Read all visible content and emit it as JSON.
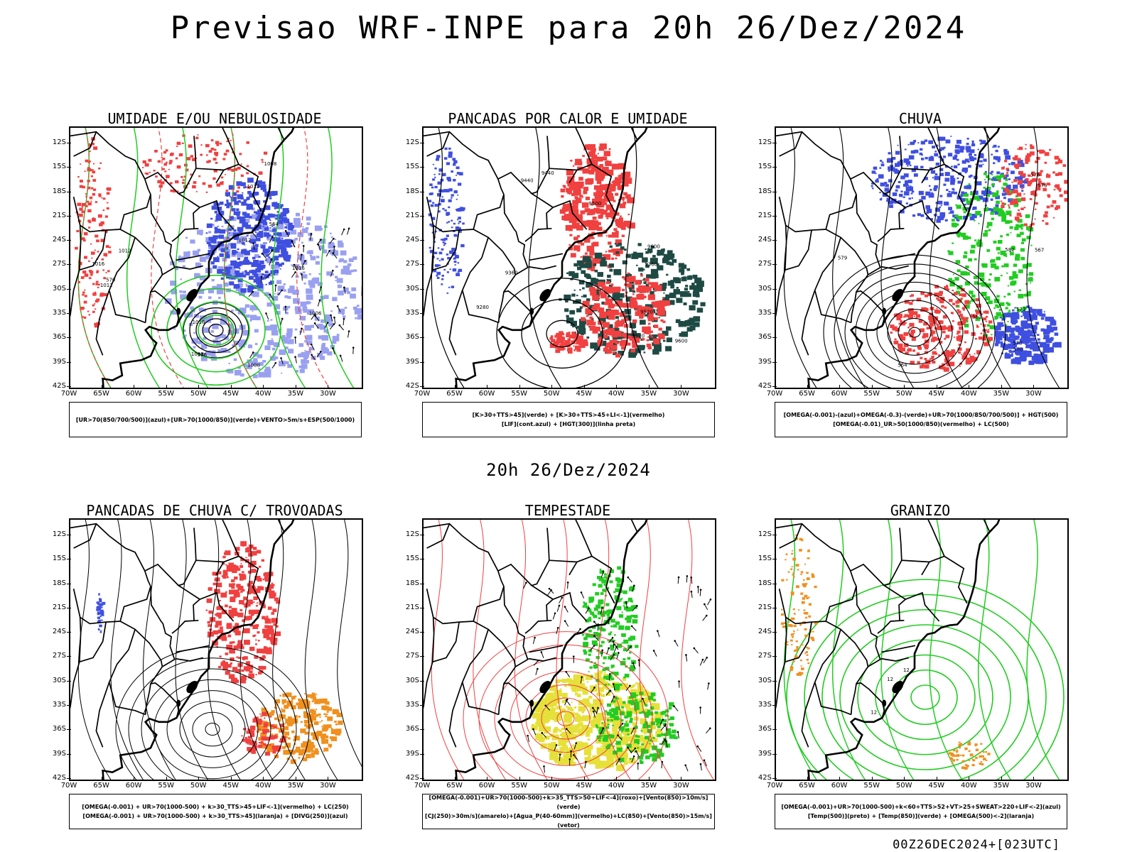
{
  "title": "Previsao WRF-INPE  para 20h 26/Dez/2024",
  "mid_date": "20h 26/Dez/2024",
  "footer": "00Z26DEC2024+[023UTC]",
  "lat_labels": [
    "12S",
    "15S",
    "18S",
    "21S",
    "24S",
    "27S",
    "30S",
    "33S",
    "36S",
    "39S",
    "42S"
  ],
  "lon_labels": [
    "70W",
    "65W",
    "60W",
    "55W",
    "50W",
    "45W",
    "40W",
    "35W",
    "30W"
  ],
  "colors": {
    "blue": "#3f4fe0",
    "green": "#22cc22",
    "red": "#f04040",
    "orange": "#f0901e",
    "yellow": "#e6e03a",
    "darkteal": "#1f4a44",
    "lightblue": "#9aa0f0"
  },
  "panels": [
    {
      "id": "umidade",
      "title": "UMIDADE E/OU NEBULOSIDADE",
      "legend": [
        "[UR>70(850/700/500)](azul)+[UR>70(1000/850)](verde)+VENTO>5m/s+ESP(500/1000)"
      ],
      "contour_labels": [
        "1006",
        "1008",
        "1012",
        "1008",
        "1016",
        "1012",
        "1016",
        "1012",
        "1008",
        "576",
        "570",
        "564",
        "1012",
        "1016"
      ]
    },
    {
      "id": "pancadas-calor",
      "title": "PANCADAS POR CALOR E UMIDADE",
      "legend": [
        "[K>30+TTS>45](verde) + [K>30+TTS>45+LI<-1](vermelho)",
        "[LIF](cont.azul) + [HGT(300)](linha preta)"
      ],
      "contour_labels": [
        "9600",
        "9520",
        "9500",
        "9520",
        "9440",
        "9360",
        "9440",
        "9280",
        "9360",
        "9600"
      ]
    },
    {
      "id": "chuva",
      "title": "CHUVA",
      "legend": [
        "[OMEGA(-0.001)-(azul)+OMEGA(-0.3)-(verde)+UR>70(1000/850/700/500)] + HGT(500)",
        "[OMEGA(-0.01)_UR>50(1000/850)(vermelho) + LC(500)"
      ],
      "contour_labels": [
        "582",
        "576",
        "579",
        "576",
        "573",
        "567",
        "570",
        "561",
        "564",
        "570"
      ]
    },
    {
      "id": "pancadas-trovoadas",
      "title": "PANCADAS DE CHUVA C/ TROVOADAS",
      "legend": [
        "[OMEGA(-0.001) + UR>70(1000-500) + k>30_TTS>45+LIF<-1](vermelho) + LC(250)",
        "[OMEGA(-0.001) + UR>70(1000-500) + k>30_TTS>45](laranja) + [DIVG(250)](azul)"
      ],
      "contour_labels": []
    },
    {
      "id": "tempestade",
      "title": "TEMPESTADE",
      "legend": [
        "[OMEGA(-0.001)+UR>70(1000-500)+k>35_TTS>50+LIF<-4](roxo)+[Vento(850)>10m/s](verde)",
        "[CJ(250)>30m/s](amarelo)+[Agua_P(40-60mm)](vermelho)+LC(850)+[Vento(850)>15m/s](vetor)"
      ],
      "contour_labels": []
    },
    {
      "id": "granizo",
      "title": "GRANIZO",
      "legend": [
        "[OMEGA(-0.001)+UR>70(1000-500)+k<60+TTS>52+VT>25+SWEAT>220+LIF<-2](azul)",
        "[Temp(500)](preto) + [Temp(850)](verde) + [OMEGA(500)<-2](laranja)"
      ],
      "contour_labels": [
        "12",
        "12",
        "12"
      ]
    }
  ]
}
